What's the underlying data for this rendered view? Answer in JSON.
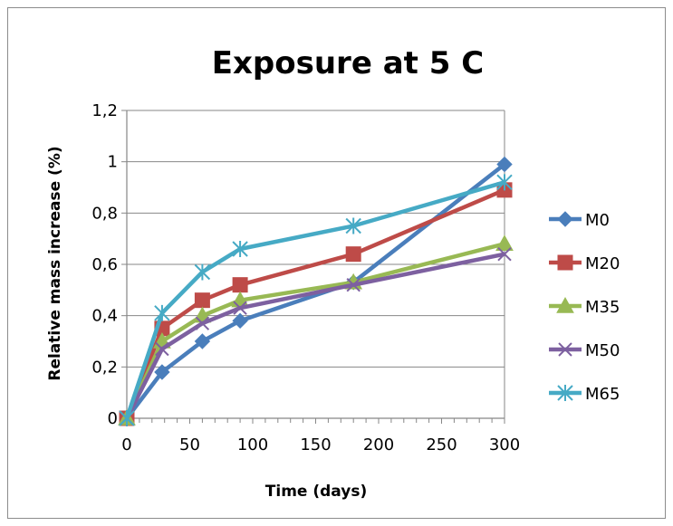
{
  "chart_data": {
    "type": "line",
    "title": "Exposure at 5 C",
    "xlabel": "Time (days)",
    "ylabel": "Relative mass increase (%)",
    "xlim": [
      0,
      300
    ],
    "ylim": [
      0,
      1.2
    ],
    "xticks": [
      0,
      50,
      100,
      150,
      200,
      250,
      300
    ],
    "xtick_labels": [
      "0",
      "50",
      "100",
      "150",
      "200",
      "250",
      "300"
    ],
    "yticks": [
      0,
      0.2,
      0.4,
      0.6,
      0.8,
      1.0,
      1.2
    ],
    "ytick_labels": [
      "0",
      "0,2",
      "0,4",
      "0,6",
      "0,8",
      "1",
      "1,2"
    ],
    "grid": "horizontal",
    "legend_position": "right",
    "x": [
      0,
      28,
      60,
      90,
      180,
      300
    ],
    "series": [
      {
        "name": "M0",
        "color": "#4a7ebb",
        "marker": "diamond",
        "values": [
          0,
          0.18,
          0.3,
          0.38,
          0.53,
          0.99
        ]
      },
      {
        "name": "M20",
        "color": "#be4b48",
        "marker": "square",
        "values": [
          0,
          0.35,
          0.46,
          0.52,
          0.64,
          0.89
        ]
      },
      {
        "name": "M35",
        "color": "#98b954",
        "marker": "triangle",
        "values": [
          0,
          0.3,
          0.4,
          0.46,
          0.53,
          0.68
        ]
      },
      {
        "name": "M50",
        "color": "#7d60a0",
        "marker": "x",
        "values": [
          0,
          0.27,
          0.37,
          0.43,
          0.52,
          0.64
        ]
      },
      {
        "name": "M65",
        "color": "#46aac5",
        "marker": "star",
        "values": [
          0,
          0.41,
          0.57,
          0.66,
          0.75,
          0.92
        ]
      }
    ]
  }
}
